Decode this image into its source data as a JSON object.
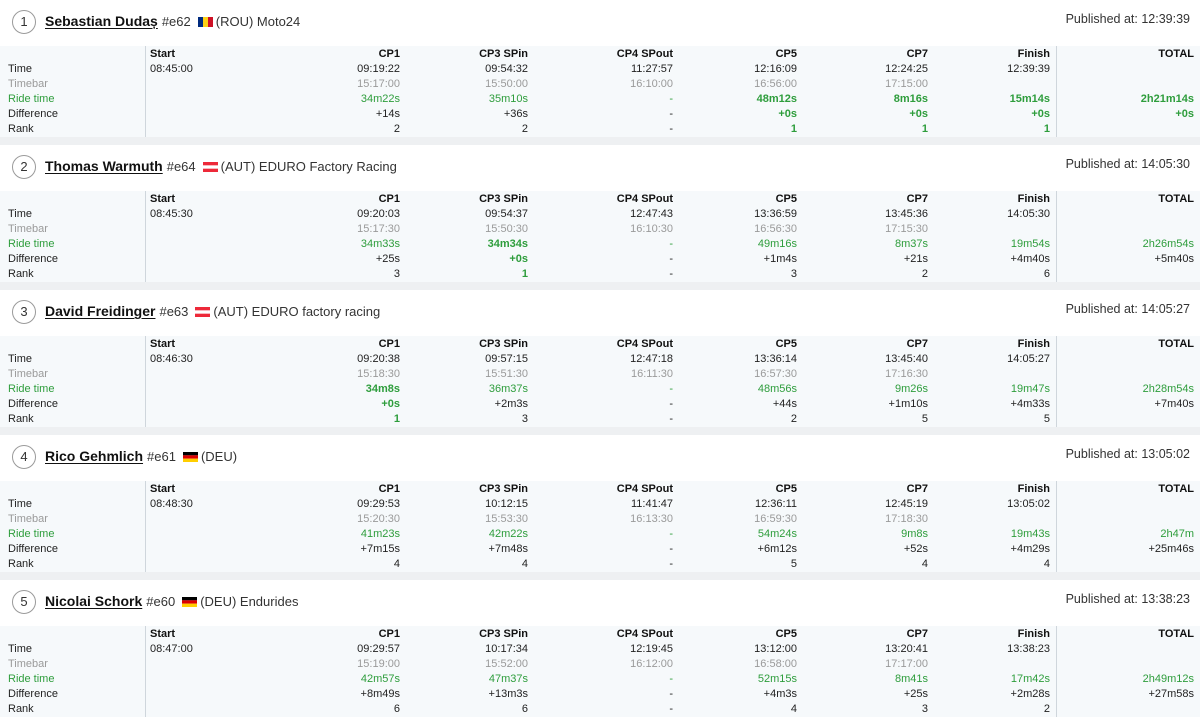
{
  "labels": {
    "published_prefix": "Published at: ",
    "row_time": "Time",
    "row_timebar": "Timebar",
    "row_ride": "Ride time",
    "row_diff": "Difference",
    "row_rank": "Rank"
  },
  "columns": [
    "Start",
    "CP1",
    "CP3 SPin",
    "CP4 SPout",
    "CP5",
    "CP7",
    "Finish",
    "TOTAL"
  ],
  "colors": {
    "green": "#2e9d3c",
    "grey": "#9a9a9a",
    "grid_bg": "#f6f9fb",
    "page_bg": "#eef0f2"
  },
  "riders": [
    {
      "position": "1",
      "name": "Sebastian Dudaș",
      "bib": "#e62",
      "country": "(ROU) Moto24",
      "flag": "ROU",
      "published": "12:39:39",
      "time": [
        "08:45:00",
        "09:19:22",
        "09:54:32",
        "11:27:57",
        "12:16:09",
        "12:24:25",
        "12:39:39",
        ""
      ],
      "timebar": [
        "",
        "15:17:00",
        "15:50:00",
        "16:10:00",
        "16:56:00",
        "17:15:00",
        "",
        ""
      ],
      "ride": [
        "",
        "34m22s",
        "35m10s",
        "-",
        "48m12s",
        "8m16s",
        "15m14s",
        "2h21m14s"
      ],
      "diff": [
        "",
        "+14s",
        "+36s",
        "-",
        "+0s",
        "+0s",
        "+0s",
        "+0s"
      ],
      "rank": [
        "",
        "2",
        "2",
        "-",
        "1",
        "1",
        "1",
        ""
      ],
      "best": [
        4,
        5,
        6,
        7
      ]
    },
    {
      "position": "2",
      "name": "Thomas Warmuth",
      "bib": "#e64",
      "country": "(AUT) EDURO Factory Racing",
      "flag": "AUT",
      "published": "14:05:30",
      "time": [
        "08:45:30",
        "09:20:03",
        "09:54:37",
        "12:47:43",
        "13:36:59",
        "13:45:36",
        "14:05:30",
        ""
      ],
      "timebar": [
        "",
        "15:17:30",
        "15:50:30",
        "16:10:30",
        "16:56:30",
        "17:15:30",
        "",
        ""
      ],
      "ride": [
        "",
        "34m33s",
        "34m34s",
        "-",
        "49m16s",
        "8m37s",
        "19m54s",
        "2h26m54s"
      ],
      "diff": [
        "",
        "+25s",
        "+0s",
        "-",
        "+1m4s",
        "+21s",
        "+4m40s",
        "+5m40s"
      ],
      "rank": [
        "",
        "3",
        "1",
        "-",
        "3",
        "2",
        "6",
        ""
      ],
      "best": [
        2
      ]
    },
    {
      "position": "3",
      "name": "David Freidinger",
      "bib": "#e63",
      "country": "(AUT) EDURO factory racing",
      "flag": "AUT",
      "published": "14:05:27",
      "time": [
        "08:46:30",
        "09:20:38",
        "09:57:15",
        "12:47:18",
        "13:36:14",
        "13:45:40",
        "14:05:27",
        ""
      ],
      "timebar": [
        "",
        "15:18:30",
        "15:51:30",
        "16:11:30",
        "16:57:30",
        "17:16:30",
        "",
        ""
      ],
      "ride": [
        "",
        "34m8s",
        "36m37s",
        "-",
        "48m56s",
        "9m26s",
        "19m47s",
        "2h28m54s"
      ],
      "diff": [
        "",
        "+0s",
        "+2m3s",
        "-",
        "+44s",
        "+1m10s",
        "+4m33s",
        "+7m40s"
      ],
      "rank": [
        "",
        "1",
        "3",
        "-",
        "2",
        "5",
        "5",
        ""
      ],
      "best": [
        1
      ]
    },
    {
      "position": "4",
      "name": "Rico Gehmlich",
      "bib": "#e61",
      "country": "(DEU)",
      "flag": "DEU",
      "published": "13:05:02",
      "time": [
        "08:48:30",
        "09:29:53",
        "10:12:15",
        "11:41:47",
        "12:36:11",
        "12:45:19",
        "13:05:02",
        ""
      ],
      "timebar": [
        "",
        "15:20:30",
        "15:53:30",
        "16:13:30",
        "16:59:30",
        "17:18:30",
        "",
        ""
      ],
      "ride": [
        "",
        "41m23s",
        "42m22s",
        "-",
        "54m24s",
        "9m8s",
        "19m43s",
        "2h47m"
      ],
      "diff": [
        "",
        "+7m15s",
        "+7m48s",
        "-",
        "+6m12s",
        "+52s",
        "+4m29s",
        "+25m46s"
      ],
      "rank": [
        "",
        "4",
        "4",
        "-",
        "5",
        "4",
        "4",
        ""
      ],
      "best": []
    },
    {
      "position": "5",
      "name": "Nicolai Schork",
      "bib": "#e60",
      "country": "(DEU) Endurides",
      "flag": "DEU",
      "published": "13:38:23",
      "time": [
        "08:47:00",
        "09:29:57",
        "10:17:34",
        "12:19:45",
        "13:12:00",
        "13:20:41",
        "13:38:23",
        ""
      ],
      "timebar": [
        "",
        "15:19:00",
        "15:52:00",
        "16:12:00",
        "16:58:00",
        "17:17:00",
        "",
        ""
      ],
      "ride": [
        "",
        "42m57s",
        "47m37s",
        "-",
        "52m15s",
        "8m41s",
        "17m42s",
        "2h49m12s"
      ],
      "diff": [
        "",
        "+8m49s",
        "+13m3s",
        "-",
        "+4m3s",
        "+25s",
        "+2m28s",
        "+27m58s"
      ],
      "rank": [
        "",
        "6",
        "6",
        "-",
        "4",
        "3",
        "2",
        ""
      ],
      "best": []
    }
  ]
}
